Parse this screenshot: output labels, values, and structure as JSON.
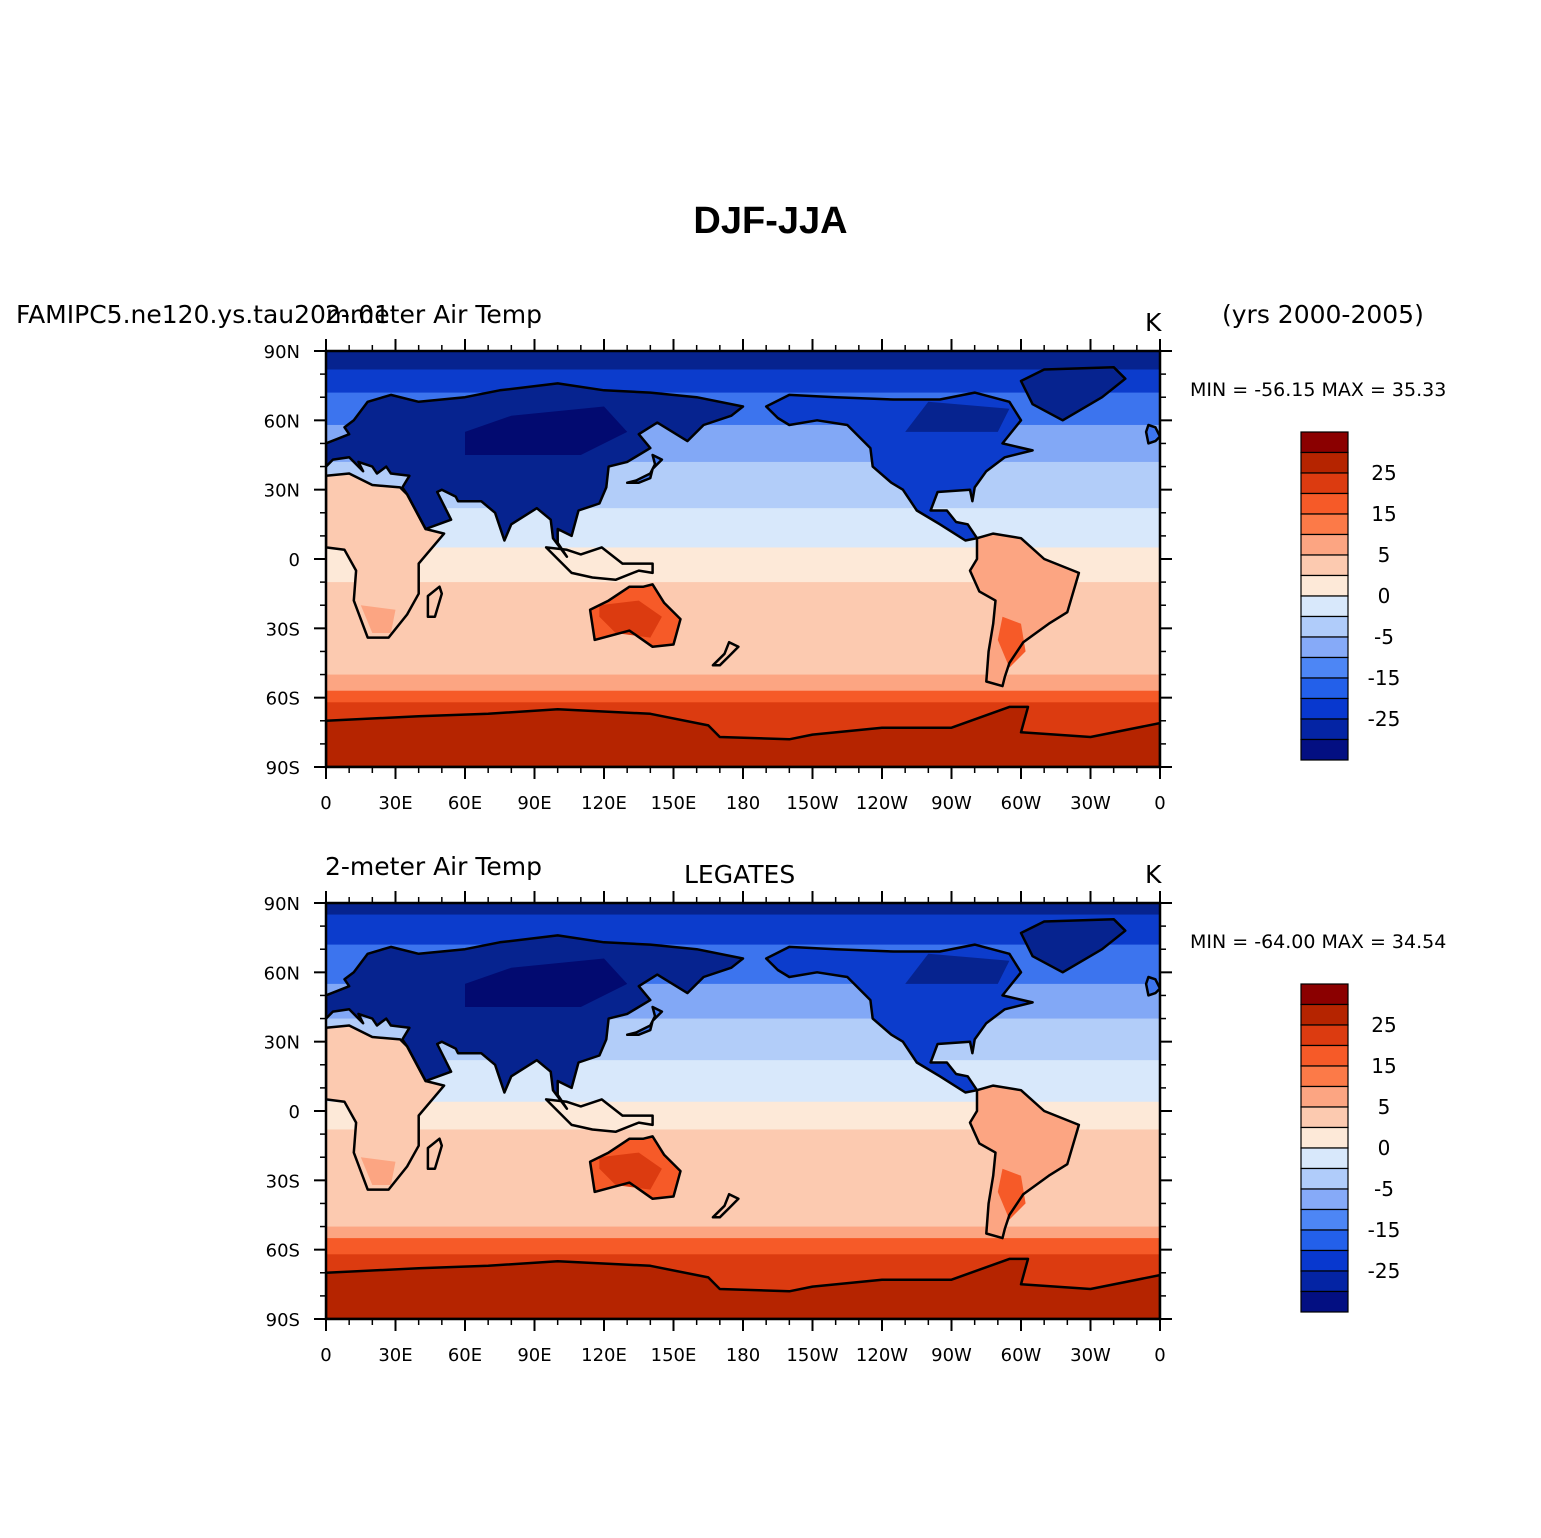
{
  "title": "DJF-JJA",
  "panels": [
    {
      "id": "model",
      "left_label": "FAMIPC5.ne120.ys.tau20m.01",
      "variable_label": "2-meter Air Temp",
      "center_label": "",
      "units": "K",
      "years": "(yrs 2000-2005)",
      "min_max": "MIN = -56.15 MAX =  35.33"
    },
    {
      "id": "obs",
      "left_label": "",
      "variable_label": "2-meter Air Temp",
      "center_label": "LEGATES",
      "units": "K",
      "years": "",
      "min_max": "MIN = -64.00 MAX =  34.54"
    }
  ],
  "lat_labels": [
    "90N",
    "60N",
    "30N",
    "0",
    "30S",
    "60S",
    "90S"
  ],
  "lon_labels": [
    "0",
    "30E",
    "60E",
    "90E",
    "120E",
    "150E",
    "180",
    "150W",
    "120W",
    "90W",
    "60W",
    "30W",
    "0"
  ],
  "colorbar": {
    "colors": [
      "#8b0000",
      "#b52400",
      "#dc3b10",
      "#f65a28",
      "#fc7a48",
      "#fca582",
      "#fccab0",
      "#fde9d8",
      "#d8e8fb",
      "#b0ccfa",
      "#86aaf8",
      "#4d86f5",
      "#2360ea",
      "#0838cf",
      "#0424a4",
      "#030f82"
    ],
    "labels": [
      {
        "text": "25",
        "after_index": 1
      },
      {
        "text": "15",
        "after_index": 3
      },
      {
        "text": "5",
        "after_index": 5
      },
      {
        "text": "0",
        "after_index": 7
      },
      {
        "text": "-5",
        "after_index": 9
      },
      {
        "text": "-15",
        "after_index": 11
      },
      {
        "text": "-25",
        "after_index": 13
      }
    ]
  },
  "palette": {
    "cold_polar": "#06238f",
    "cold": "#0c3ccc",
    "mid_cold": "#3c74ee",
    "cool": "#82a8f6",
    "cool_light": "#b2cdf9",
    "near_zero_cold": "#d8e8fb",
    "near_zero_warm": "#fde9d8",
    "warm_light": "#fccab0",
    "warm": "#fca582",
    "hot": "#f65a28",
    "very_hot": "#dc3b10",
    "extreme": "#b52400",
    "coast": "#000000"
  }
}
